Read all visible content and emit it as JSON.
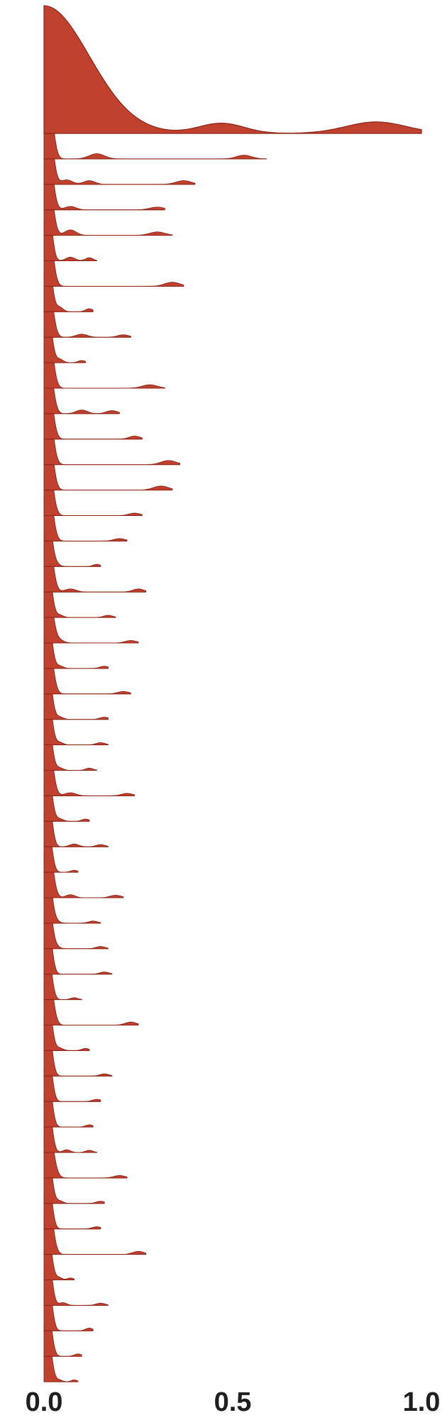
{
  "chart_data": {
    "type": "ridgeline",
    "xlim": [
      0.0,
      1.0
    ],
    "x_ticks": [
      {
        "value": 0.0,
        "label": "0.0"
      },
      {
        "value": 0.5,
        "label": "0.5"
      },
      {
        "value": 1.0,
        "label": "1.0"
      }
    ],
    "grid": false,
    "legend": "none",
    "color": "#c0412e",
    "stroke_color": "#8f2418",
    "rows": [
      {
        "max": 1.0,
        "amp": 1.0,
        "peaks": [
          [
            0.0,
            0.12,
            1.0
          ],
          [
            0.47,
            0.06,
            0.08
          ],
          [
            0.88,
            0.08,
            0.09
          ]
        ]
      },
      {
        "max": 0.59,
        "amp": 0.55,
        "peaks": [
          [
            0.01,
            0.012,
            1.0
          ],
          [
            0.14,
            0.02,
            0.07
          ],
          [
            0.53,
            0.02,
            0.05
          ]
        ]
      },
      {
        "max": 0.4,
        "amp": 0.55,
        "peaks": [
          [
            0.01,
            0.012,
            1.0
          ],
          [
            0.06,
            0.015,
            0.06
          ],
          [
            0.12,
            0.015,
            0.05
          ],
          [
            0.37,
            0.02,
            0.05
          ]
        ]
      },
      {
        "max": 0.32,
        "amp": 0.5,
        "peaks": [
          [
            0.01,
            0.012,
            1.0
          ],
          [
            0.07,
            0.015,
            0.05
          ],
          [
            0.3,
            0.02,
            0.04
          ]
        ]
      },
      {
        "max": 0.34,
        "amp": 0.5,
        "peaks": [
          [
            0.01,
            0.012,
            1.0
          ],
          [
            0.07,
            0.015,
            0.08
          ],
          [
            0.3,
            0.02,
            0.05
          ]
        ]
      },
      {
        "max": 0.14,
        "amp": 0.45,
        "peaks": [
          [
            0.01,
            0.01,
            1.0
          ],
          [
            0.07,
            0.012,
            0.06
          ],
          [
            0.12,
            0.01,
            0.05
          ]
        ]
      },
      {
        "max": 0.37,
        "amp": 0.5,
        "peaks": [
          [
            0.01,
            0.012,
            1.0
          ],
          [
            0.34,
            0.02,
            0.06
          ]
        ]
      },
      {
        "max": 0.13,
        "amp": 0.45,
        "peaks": [
          [
            0.01,
            0.01,
            1.0
          ],
          [
            0.04,
            0.01,
            0.08
          ],
          [
            0.12,
            0.01,
            0.05
          ]
        ]
      },
      {
        "max": 0.23,
        "amp": 0.45,
        "peaks": [
          [
            0.01,
            0.012,
            1.0
          ],
          [
            0.1,
            0.015,
            0.05
          ],
          [
            0.21,
            0.015,
            0.04
          ]
        ]
      },
      {
        "max": 0.11,
        "amp": 0.4,
        "peaks": [
          [
            0.01,
            0.01,
            1.0
          ],
          [
            0.04,
            0.01,
            0.07
          ],
          [
            0.1,
            0.01,
            0.04
          ]
        ]
      },
      {
        "max": 0.32,
        "amp": 0.5,
        "peaks": [
          [
            0.01,
            0.012,
            1.0
          ],
          [
            0.28,
            0.02,
            0.05
          ]
        ]
      },
      {
        "max": 0.2,
        "amp": 0.45,
        "peaks": [
          [
            0.01,
            0.012,
            1.0
          ],
          [
            0.1,
            0.015,
            0.06
          ],
          [
            0.18,
            0.015,
            0.05
          ]
        ]
      },
      {
        "max": 0.26,
        "amp": 0.45,
        "peaks": [
          [
            0.01,
            0.012,
            1.0
          ],
          [
            0.24,
            0.015,
            0.05
          ]
        ]
      },
      {
        "max": 0.36,
        "amp": 0.5,
        "peaks": [
          [
            0.01,
            0.012,
            1.0
          ],
          [
            0.33,
            0.02,
            0.06
          ]
        ]
      },
      {
        "max": 0.34,
        "amp": 0.5,
        "peaks": [
          [
            0.01,
            0.012,
            1.0
          ],
          [
            0.31,
            0.02,
            0.06
          ]
        ]
      },
      {
        "max": 0.26,
        "amp": 0.45,
        "peaks": [
          [
            0.01,
            0.012,
            1.0
          ],
          [
            0.24,
            0.015,
            0.04
          ]
        ]
      },
      {
        "max": 0.22,
        "amp": 0.45,
        "peaks": [
          [
            0.01,
            0.012,
            1.0
          ],
          [
            0.2,
            0.015,
            0.04
          ]
        ]
      },
      {
        "max": 0.15,
        "amp": 0.4,
        "peaks": [
          [
            0.01,
            0.01,
            1.0
          ],
          [
            0.03,
            0.01,
            0.06
          ],
          [
            0.14,
            0.01,
            0.04
          ]
        ]
      },
      {
        "max": 0.27,
        "amp": 0.45,
        "peaks": [
          [
            0.01,
            0.012,
            1.0
          ],
          [
            0.07,
            0.015,
            0.05
          ],
          [
            0.25,
            0.015,
            0.05
          ]
        ]
      },
      {
        "max": 0.19,
        "amp": 0.4,
        "peaks": [
          [
            0.01,
            0.01,
            1.0
          ],
          [
            0.04,
            0.01,
            0.05
          ],
          [
            0.17,
            0.012,
            0.04
          ]
        ]
      },
      {
        "max": 0.25,
        "amp": 0.45,
        "peaks": [
          [
            0.01,
            0.012,
            1.0
          ],
          [
            0.04,
            0.012,
            0.05
          ],
          [
            0.23,
            0.015,
            0.04
          ]
        ]
      },
      {
        "max": 0.17,
        "amp": 0.4,
        "peaks": [
          [
            0.01,
            0.01,
            1.0
          ],
          [
            0.04,
            0.01,
            0.05
          ],
          [
            0.16,
            0.012,
            0.04
          ]
        ]
      },
      {
        "max": 0.23,
        "amp": 0.45,
        "peaks": [
          [
            0.01,
            0.012,
            1.0
          ],
          [
            0.21,
            0.015,
            0.04
          ]
        ]
      },
      {
        "max": 0.17,
        "amp": 0.4,
        "peaks": [
          [
            0.01,
            0.01,
            1.0
          ],
          [
            0.04,
            0.01,
            0.05
          ],
          [
            0.16,
            0.012,
            0.04
          ]
        ]
      },
      {
        "max": 0.17,
        "amp": 0.4,
        "peaks": [
          [
            0.01,
            0.01,
            1.0
          ],
          [
            0.04,
            0.01,
            0.05
          ],
          [
            0.15,
            0.012,
            0.04
          ]
        ]
      },
      {
        "max": 0.14,
        "amp": 0.4,
        "peaks": [
          [
            0.01,
            0.01,
            1.0
          ],
          [
            0.04,
            0.01,
            0.05
          ],
          [
            0.12,
            0.01,
            0.04
          ]
        ]
      },
      {
        "max": 0.24,
        "amp": 0.45,
        "peaks": [
          [
            0.01,
            0.012,
            1.0
          ],
          [
            0.07,
            0.015,
            0.05
          ],
          [
            0.22,
            0.015,
            0.04
          ]
        ]
      },
      {
        "max": 0.12,
        "amp": 0.4,
        "peaks": [
          [
            0.01,
            0.01,
            1.0
          ],
          [
            0.04,
            0.01,
            0.05
          ],
          [
            0.11,
            0.01,
            0.04
          ]
        ]
      },
      {
        "max": 0.17,
        "amp": 0.4,
        "peaks": [
          [
            0.01,
            0.01,
            1.0
          ],
          [
            0.08,
            0.012,
            0.05
          ],
          [
            0.15,
            0.012,
            0.04
          ]
        ]
      },
      {
        "max": 0.09,
        "amp": 0.35,
        "peaks": [
          [
            0.01,
            0.01,
            1.0
          ],
          [
            0.08,
            0.01,
            0.04
          ]
        ]
      },
      {
        "max": 0.21,
        "amp": 0.45,
        "peaks": [
          [
            0.01,
            0.012,
            1.0
          ],
          [
            0.07,
            0.012,
            0.05
          ],
          [
            0.19,
            0.015,
            0.04
          ]
        ]
      },
      {
        "max": 0.15,
        "amp": 0.4,
        "peaks": [
          [
            0.01,
            0.01,
            1.0
          ],
          [
            0.03,
            0.01,
            0.05
          ],
          [
            0.13,
            0.012,
            0.04
          ]
        ]
      },
      {
        "max": 0.17,
        "amp": 0.4,
        "peaks": [
          [
            0.01,
            0.01,
            1.0
          ],
          [
            0.03,
            0.01,
            0.05
          ],
          [
            0.15,
            0.012,
            0.04
          ]
        ]
      },
      {
        "max": 0.18,
        "amp": 0.4,
        "peaks": [
          [
            0.01,
            0.01,
            1.0
          ],
          [
            0.16,
            0.012,
            0.04
          ]
        ]
      },
      {
        "max": 0.1,
        "amp": 0.35,
        "peaks": [
          [
            0.01,
            0.01,
            1.0
          ],
          [
            0.08,
            0.01,
            0.04
          ]
        ]
      },
      {
        "max": 0.25,
        "amp": 0.45,
        "peaks": [
          [
            0.01,
            0.012,
            1.0
          ],
          [
            0.23,
            0.015,
            0.05
          ]
        ]
      },
      {
        "max": 0.12,
        "amp": 0.4,
        "peaks": [
          [
            0.01,
            0.01,
            1.0
          ],
          [
            0.04,
            0.01,
            0.05
          ],
          [
            0.11,
            0.01,
            0.04
          ]
        ]
      },
      {
        "max": 0.18,
        "amp": 0.4,
        "peaks": [
          [
            0.01,
            0.01,
            1.0
          ],
          [
            0.16,
            0.012,
            0.04
          ]
        ]
      },
      {
        "max": 0.15,
        "amp": 0.4,
        "peaks": [
          [
            0.01,
            0.01,
            1.0
          ],
          [
            0.14,
            0.012,
            0.04
          ]
        ]
      },
      {
        "max": 0.13,
        "amp": 0.4,
        "peaks": [
          [
            0.01,
            0.01,
            1.0
          ],
          [
            0.12,
            0.01,
            0.04
          ]
        ]
      },
      {
        "max": 0.14,
        "amp": 0.4,
        "peaks": [
          [
            0.01,
            0.01,
            1.0
          ],
          [
            0.06,
            0.01,
            0.05
          ],
          [
            0.12,
            0.01,
            0.04
          ]
        ]
      },
      {
        "max": 0.22,
        "amp": 0.45,
        "peaks": [
          [
            0.01,
            0.012,
            1.0
          ],
          [
            0.03,
            0.01,
            0.05
          ],
          [
            0.2,
            0.015,
            0.04
          ]
        ]
      },
      {
        "max": 0.16,
        "amp": 0.4,
        "peaks": [
          [
            0.01,
            0.01,
            1.0
          ],
          [
            0.04,
            0.01,
            0.05
          ],
          [
            0.15,
            0.012,
            0.04
          ]
        ]
      },
      {
        "max": 0.15,
        "amp": 0.4,
        "peaks": [
          [
            0.01,
            0.01,
            1.0
          ],
          [
            0.14,
            0.012,
            0.04
          ]
        ]
      },
      {
        "max": 0.27,
        "amp": 0.45,
        "peaks": [
          [
            0.01,
            0.012,
            1.0
          ],
          [
            0.25,
            0.015,
            0.05
          ]
        ]
      },
      {
        "max": 0.08,
        "amp": 0.35,
        "peaks": [
          [
            0.01,
            0.01,
            1.0
          ],
          [
            0.04,
            0.008,
            0.05
          ],
          [
            0.07,
            0.008,
            0.04
          ]
        ]
      },
      {
        "max": 0.17,
        "amp": 0.4,
        "peaks": [
          [
            0.01,
            0.01,
            1.0
          ],
          [
            0.05,
            0.01,
            0.05
          ],
          [
            0.15,
            0.012,
            0.04
          ]
        ]
      },
      {
        "max": 0.13,
        "amp": 0.4,
        "peaks": [
          [
            0.01,
            0.01,
            1.0
          ],
          [
            0.12,
            0.01,
            0.05
          ]
        ]
      },
      {
        "max": 0.1,
        "amp": 0.35,
        "peaks": [
          [
            0.01,
            0.01,
            1.0
          ],
          [
            0.09,
            0.01,
            0.05
          ]
        ]
      },
      {
        "max": 0.09,
        "amp": 0.35,
        "peaks": [
          [
            0.01,
            0.01,
            1.0
          ],
          [
            0.04,
            0.008,
            0.04
          ],
          [
            0.08,
            0.008,
            0.04
          ]
        ]
      }
    ]
  }
}
